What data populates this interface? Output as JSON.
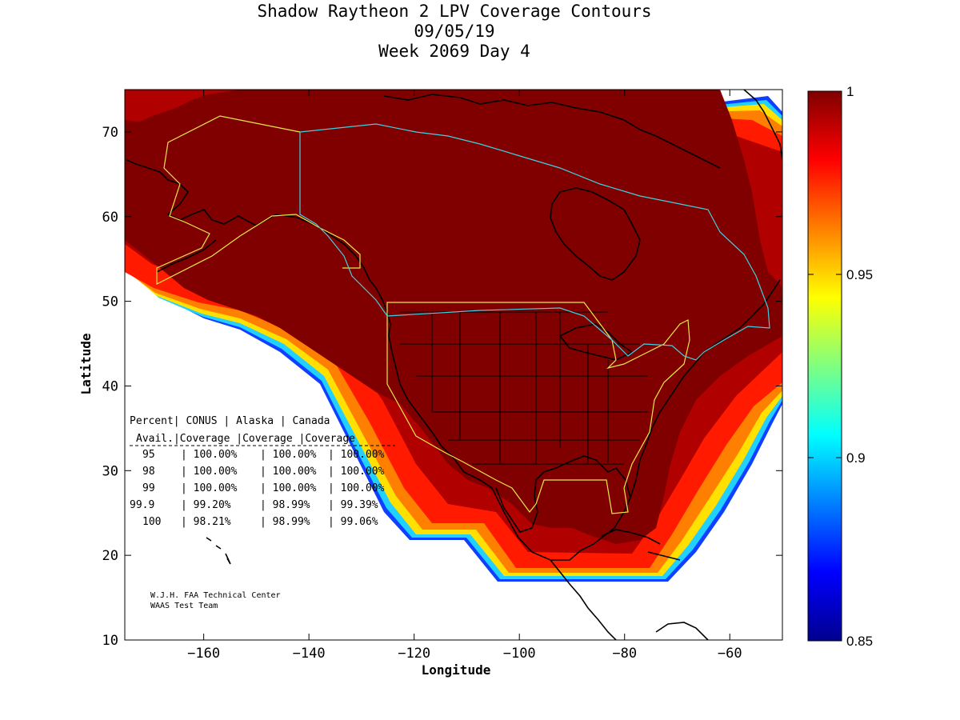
{
  "title": {
    "line1": "Shadow Raytheon 2 LPV Coverage Contours",
    "line2": "09/05/19",
    "line3": "Week 2069 Day 4"
  },
  "axes": {
    "xlabel": "Longitude",
    "ylabel": "Latitude",
    "xlim": [
      -175,
      -50
    ],
    "ylim": [
      10,
      75
    ],
    "xticks": [
      -160,
      -140,
      -120,
      -100,
      -80,
      -60
    ],
    "yticks": [
      10,
      20,
      30,
      40,
      50,
      60,
      70
    ]
  },
  "colorbar": {
    "min": 0.85,
    "max": 1,
    "ticks": [
      "1",
      "0.95",
      "0.9",
      "0.85"
    ],
    "tick_values": [
      1,
      0.95,
      0.9,
      0.85
    ],
    "colormap": "jet"
  },
  "table": {
    "header1": [
      "Percent",
      "CONUS",
      "Alaska",
      "Canada"
    ],
    "header2": [
      "Avail.",
      "Coverage",
      "Coverage",
      "Coverage"
    ],
    "rows": [
      [
        "95",
        "100.00%",
        "100.00%",
        "100.00%"
      ],
      [
        "98",
        "100.00%",
        "100.00%",
        "100.00%"
      ],
      [
        "99",
        "100.00%",
        "100.00%",
        "100.00%"
      ],
      [
        "99.9",
        "99.20%",
        "98.99%",
        "99.39%"
      ],
      [
        "100",
        "98.21%",
        "98.99%",
        "99.06%"
      ]
    ]
  },
  "credits": {
    "line1": "W.J.H. FAA Technical Center",
    "line2": "WAAS Test Team"
  },
  "colors": {
    "coverage_full": "#800000",
    "conus_boundary": "#e8e84a",
    "canada_boundary": "#40d0e0",
    "coastline": "#000000"
  }
}
